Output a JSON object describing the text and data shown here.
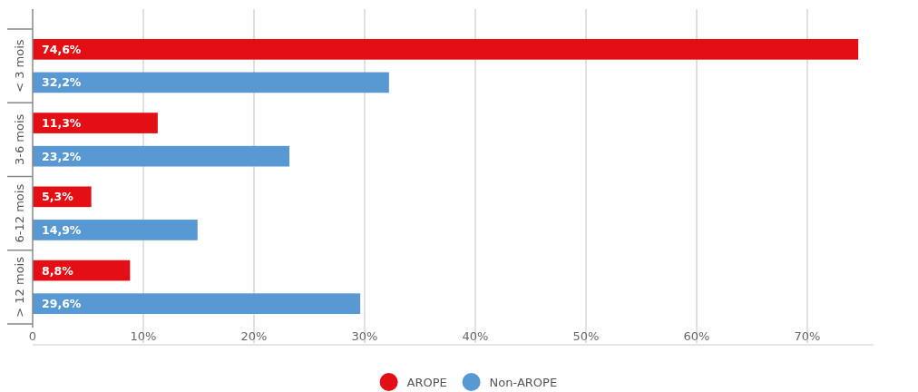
{
  "chart_data": {
    "type": "bar",
    "orientation": "horizontal",
    "categories": [
      "< 3 mois",
      "3-6 mois",
      "6-12 mois",
      "> 12 mois"
    ],
    "series": [
      {
        "name": "AROPE",
        "color": "#e30f14",
        "values": [
          74.6,
          11.3,
          5.3,
          8.8
        ],
        "value_labels": [
          "74,6%",
          "11,3%",
          "5,3%",
          "8,8%"
        ]
      },
      {
        "name": "Non-AROPE",
        "color": "#5899d3",
        "values": [
          32.2,
          23.2,
          14.9,
          29.6
        ],
        "value_labels": [
          "32,2%",
          "23,2%",
          "14,9%",
          "29,6%"
        ]
      }
    ],
    "xlim": [
      0,
      76
    ],
    "xticks": [
      {
        "value": 0,
        "label": "0"
      },
      {
        "value": 10,
        "label": "10%"
      },
      {
        "value": 20,
        "label": "20%"
      },
      {
        "value": 30,
        "label": "30%"
      },
      {
        "value": 40,
        "label": "40%"
      },
      {
        "value": 50,
        "label": "50%"
      },
      {
        "value": 60,
        "label": "60%"
      },
      {
        "value": 70,
        "label": "70%"
      }
    ],
    "grid": "x",
    "legend": "bottom"
  }
}
